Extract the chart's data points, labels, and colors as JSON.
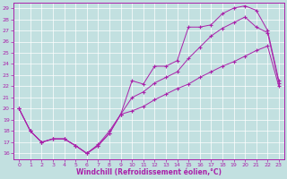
{
  "xlabel": "Windchill (Refroidissement éolien,°C)",
  "ylabel": "",
  "xlim": [
    -0.5,
    23.5
  ],
  "ylim": [
    15.5,
    29.5
  ],
  "xticks": [
    0,
    1,
    2,
    3,
    4,
    5,
    6,
    7,
    8,
    9,
    10,
    11,
    12,
    13,
    14,
    15,
    16,
    17,
    18,
    19,
    20,
    21,
    22,
    23
  ],
  "yticks": [
    16,
    17,
    18,
    19,
    20,
    21,
    22,
    23,
    24,
    25,
    26,
    27,
    28,
    29
  ],
  "background_color": "#c2e0e0",
  "line_color": "#aa22aa",
  "grid_color": "#ffffff",
  "line1_x": [
    0,
    1,
    2,
    3,
    4,
    5,
    6,
    7,
    8,
    9,
    10,
    11,
    12,
    13,
    14,
    15,
    16,
    17,
    18,
    19,
    20,
    21,
    22,
    23
  ],
  "line1_y": [
    20.0,
    18.0,
    17.0,
    17.3,
    17.3,
    16.7,
    16.0,
    16.7,
    17.8,
    19.5,
    22.5,
    22.2,
    23.8,
    23.8,
    24.3,
    27.3,
    27.3,
    27.5,
    28.5,
    29.0,
    29.2,
    28.8,
    27.0,
    22.5
  ],
  "line2_x": [
    0,
    1,
    2,
    3,
    4,
    5,
    6,
    7,
    8,
    9,
    10,
    11,
    12,
    13,
    14,
    15,
    16,
    17,
    18,
    19,
    20,
    21,
    22,
    23
  ],
  "line2_y": [
    20.0,
    18.0,
    17.0,
    17.3,
    17.3,
    16.7,
    16.0,
    16.7,
    17.8,
    19.5,
    21.0,
    21.5,
    22.3,
    22.8,
    23.3,
    24.5,
    25.5,
    26.5,
    27.2,
    27.7,
    28.2,
    27.3,
    26.8,
    22.3
  ],
  "line3_x": [
    0,
    1,
    2,
    3,
    4,
    5,
    6,
    7,
    8,
    9,
    10,
    11,
    12,
    13,
    14,
    15,
    16,
    17,
    18,
    19,
    20,
    21,
    22,
    23
  ],
  "line3_y": [
    20.0,
    18.0,
    17.0,
    17.3,
    17.3,
    16.7,
    16.0,
    16.8,
    18.0,
    19.5,
    19.8,
    20.2,
    20.8,
    21.3,
    21.8,
    22.2,
    22.8,
    23.3,
    23.8,
    24.2,
    24.7,
    25.2,
    25.6,
    22.0
  ]
}
